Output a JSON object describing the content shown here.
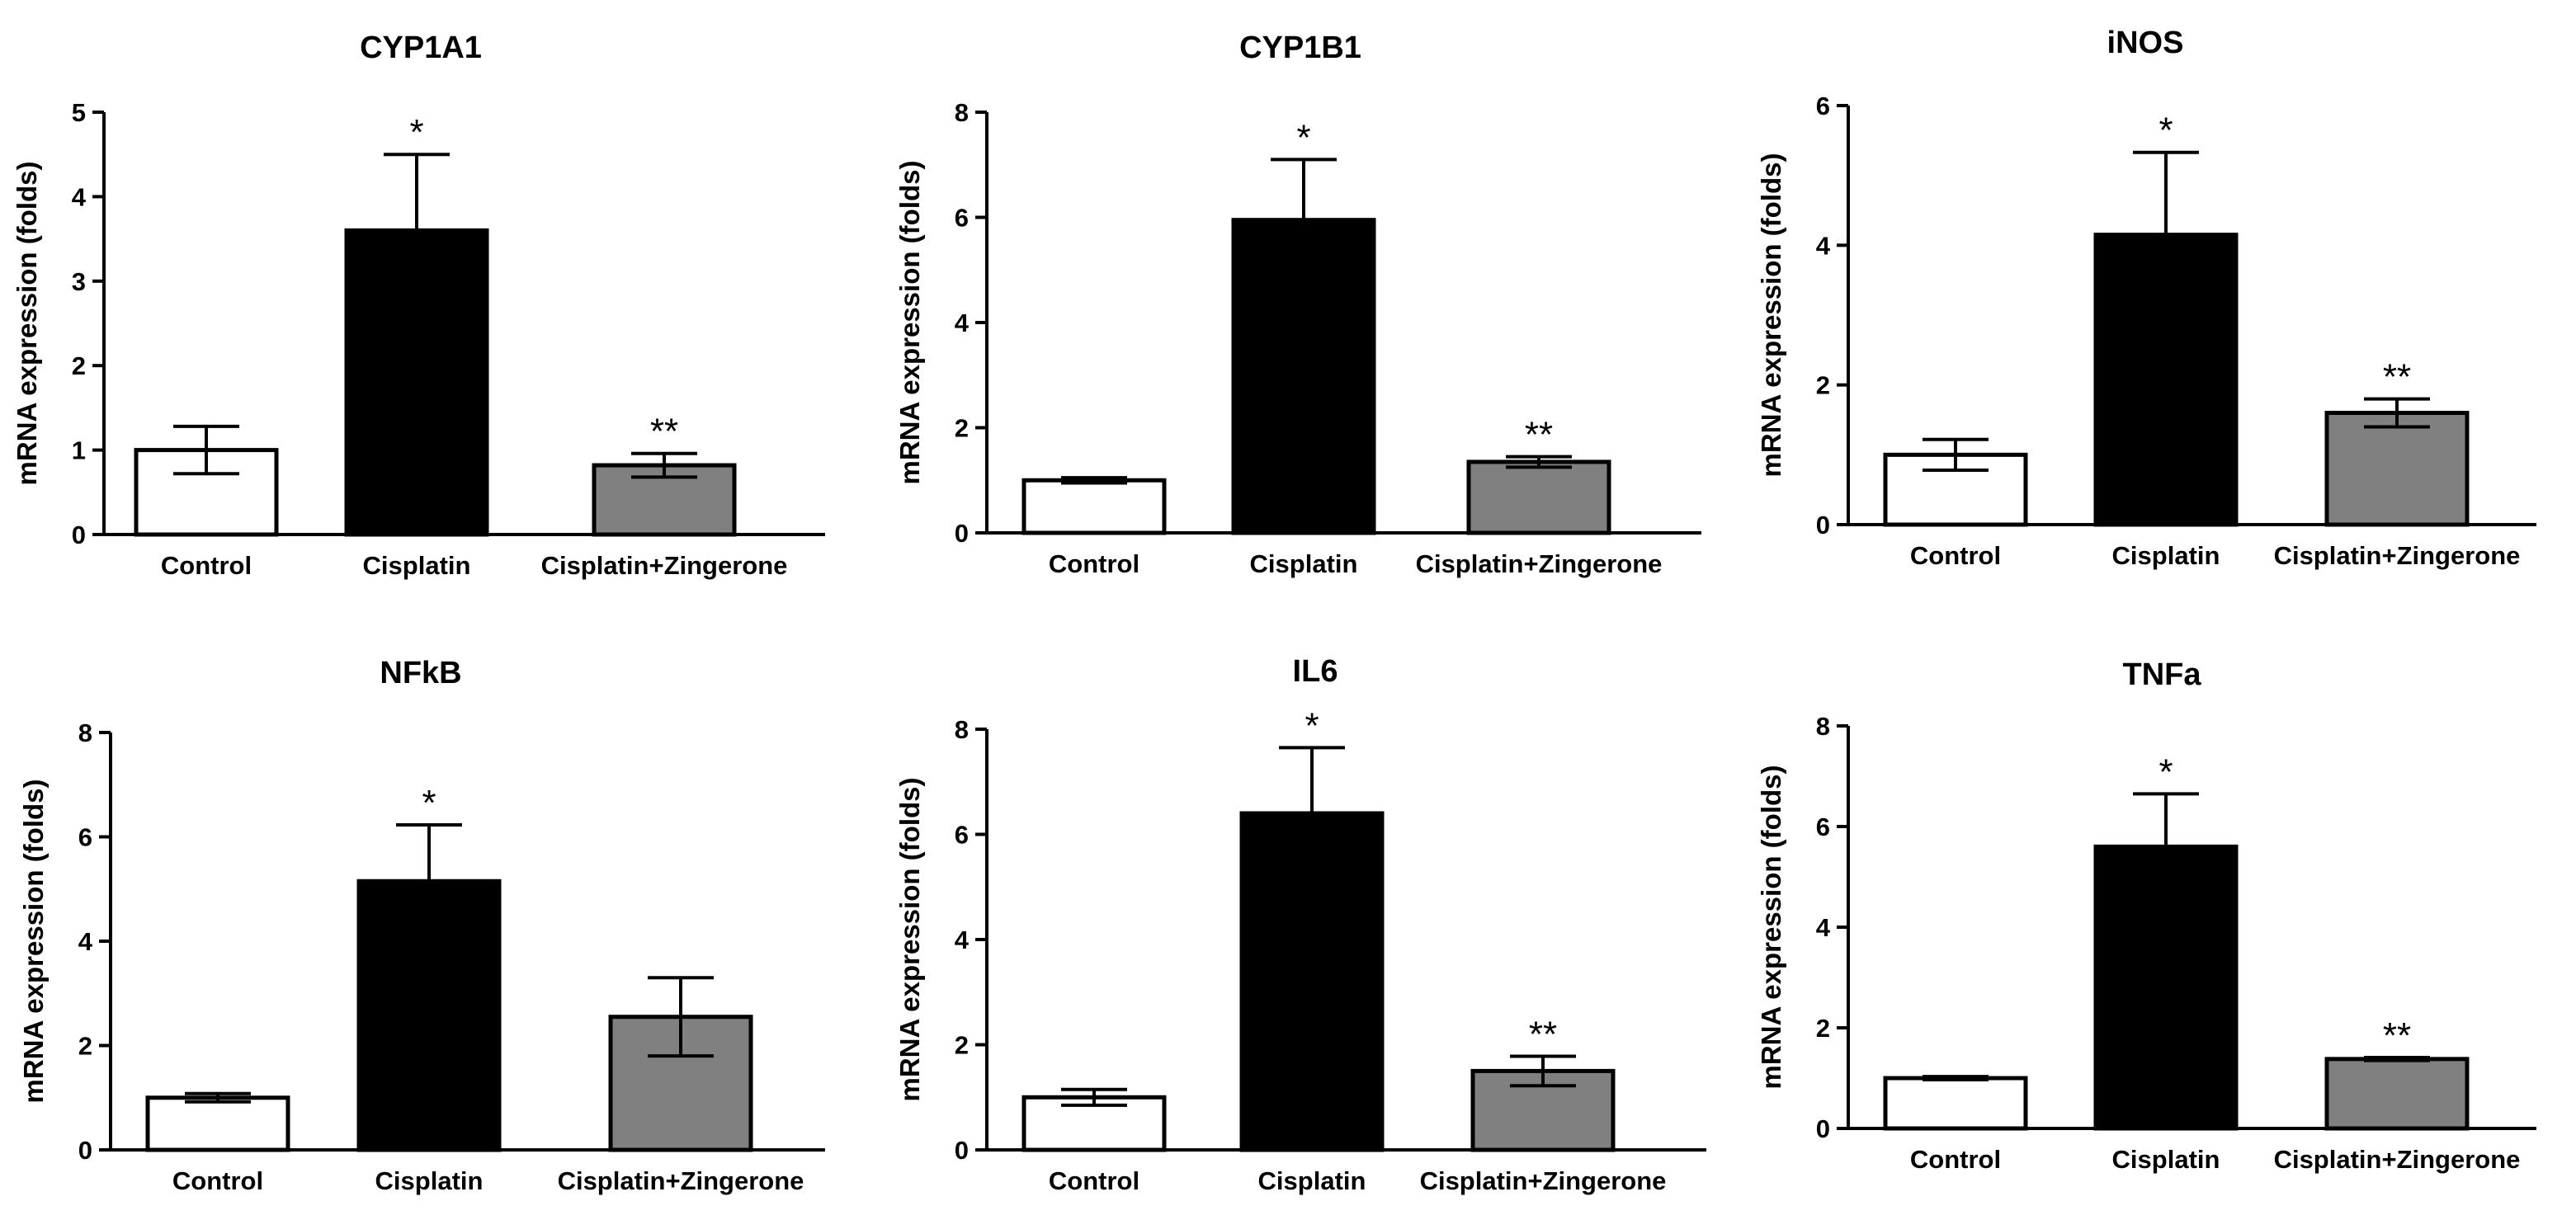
{
  "figure": {
    "description_visible": false
  },
  "style": {
    "control_fill": "#ffffff",
    "cisplatin_fill": "#000000",
    "zingerone_fill": "#808080",
    "stroke": "#000000"
  },
  "chart_data": [
    {
      "type": "bar",
      "title": "CYP1A1",
      "categories": [
        "Control",
        "Cisplatin",
        "Cisplatin+Zingerone"
      ],
      "values": [
        1.0,
        3.6,
        0.82
      ],
      "errors": [
        0.28,
        0.9,
        0.14
      ],
      "significance": [
        "",
        "*",
        "**"
      ],
      "ylabel": "mRNA expression (folds)",
      "xlabel": "",
      "ylim": [
        0,
        5
      ],
      "yticks": [
        "0",
        "1",
        "2",
        "3",
        "4",
        "5"
      ]
    },
    {
      "type": "bar",
      "title": "CYP1B1",
      "categories": [
        "Control",
        "Cisplatin",
        "Cisplatin+Zingerone"
      ],
      "values": [
        1.0,
        5.95,
        1.35
      ],
      "errors": [
        0.05,
        1.15,
        0.1
      ],
      "significance": [
        "",
        "*",
        "**"
      ],
      "ylabel": "mRNA expression (folds)",
      "xlabel": "",
      "ylim": [
        0,
        8
      ],
      "yticks": [
        "0",
        "2",
        "4",
        "6",
        "8"
      ]
    },
    {
      "type": "bar",
      "title": "iNOS",
      "categories": [
        "Control",
        "Cisplatin",
        "Cisplatin+Zingerone"
      ],
      "values": [
        1.0,
        4.15,
        1.6
      ],
      "errors": [
        0.22,
        1.18,
        0.2
      ],
      "significance": [
        "",
        "*",
        "**"
      ],
      "ylabel": "mRNA expression (folds)",
      "xlabel": "",
      "ylim": [
        0,
        6
      ],
      "yticks": [
        "0",
        "2",
        "4",
        "6"
      ]
    },
    {
      "type": "bar",
      "title": "NFkB",
      "categories": [
        "Control",
        "Cisplatin",
        "Cisplatin+Zingerone"
      ],
      "values": [
        1.0,
        5.15,
        2.55
      ],
      "errors": [
        0.08,
        1.08,
        0.75
      ],
      "significance": [
        "",
        "*",
        ""
      ],
      "ylabel": "mRNA expression (folds)",
      "xlabel": "",
      "ylim": [
        0,
        8
      ],
      "yticks": [
        "0",
        "2",
        "4",
        "6",
        "8"
      ]
    },
    {
      "type": "bar",
      "title": "IL6",
      "categories": [
        "Control",
        "Cisplatin",
        "Cisplatin+Zingerone"
      ],
      "values": [
        1.0,
        6.4,
        1.5
      ],
      "errors": [
        0.15,
        1.25,
        0.28
      ],
      "significance": [
        "",
        "*",
        "**"
      ],
      "ylabel": "mRNA expression (folds)",
      "xlabel": "",
      "ylim": [
        0,
        8
      ],
      "yticks": [
        "0",
        "2",
        "4",
        "6",
        "8"
      ]
    },
    {
      "type": "bar",
      "title": "TNFa",
      "categories": [
        "Control",
        "Cisplatin",
        "Cisplatin+Zingerone"
      ],
      "values": [
        1.0,
        5.6,
        1.38
      ],
      "errors": [
        0.03,
        1.05,
        0.03
      ],
      "significance": [
        "",
        "*",
        "**"
      ],
      "ylabel": "mRNA expression (folds)",
      "xlabel": "",
      "ylim": [
        0,
        8
      ],
      "yticks": [
        "0",
        "2",
        "4",
        "6",
        "8"
      ]
    }
  ]
}
